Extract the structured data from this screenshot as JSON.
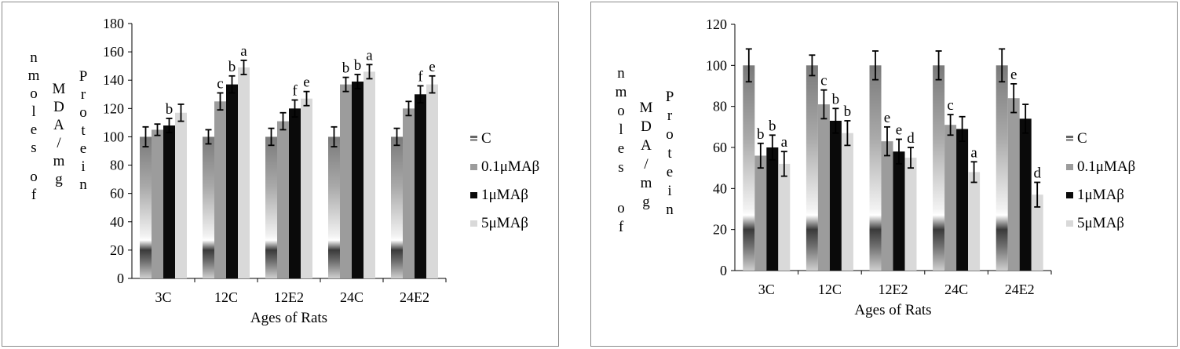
{
  "chart_data": [
    {
      "type": "bar",
      "xlabel": "Ages of Rats",
      "ylabel_columns": [
        "nmoles of",
        "MDA/mg",
        "Protein"
      ],
      "ylim": [
        0,
        180
      ],
      "yticks": [
        0,
        20,
        40,
        60,
        80,
        100,
        120,
        140,
        160,
        180
      ],
      "categories": [
        "3C",
        "12C",
        "12E2",
        "24C",
        "24E2"
      ],
      "legend_position": "right",
      "series": [
        {
          "name": "C",
          "color": "#8c8c8c",
          "gradient": true,
          "values": [
            100,
            100,
            100,
            100,
            100
          ],
          "errors": [
            7,
            5,
            6,
            7,
            6
          ],
          "labels": [
            "",
            "",
            "",
            "",
            ""
          ]
        },
        {
          "name": "0.1μMAβ",
          "color": "#9c9c9c",
          "values": [
            105,
            125,
            111,
            137,
            120
          ],
          "errors": [
            4,
            6,
            6,
            5,
            5
          ],
          "labels": [
            "",
            "c",
            "",
            "b",
            ""
          ]
        },
        {
          "name": "1μMAβ",
          "color": "#0a0a0a",
          "values": [
            108,
            137,
            120,
            139,
            130
          ],
          "errors": [
            5,
            6,
            6,
            5,
            6
          ],
          "labels": [
            "b",
            "b",
            "f",
            "b",
            "f"
          ]
        },
        {
          "name": "5μMAβ",
          "color": "#d9d9d9",
          "values": [
            117,
            149,
            127,
            146,
            137
          ],
          "errors": [
            6,
            5,
            5,
            5,
            6
          ],
          "labels": [
            "",
            "a",
            "e",
            "a",
            "e"
          ]
        }
      ]
    },
    {
      "type": "bar",
      "xlabel": "Ages of Rats",
      "ylabel_columns": [
        "nmoles of",
        "MDA/mg",
        "Protein"
      ],
      "ylim": [
        0,
        120
      ],
      "yticks": [
        0,
        20,
        40,
        60,
        80,
        100,
        120
      ],
      "categories": [
        "3C",
        "12C",
        "12E2",
        "24C",
        "24E2"
      ],
      "legend_position": "right",
      "series": [
        {
          "name": "C",
          "color": "#8c8c8c",
          "gradient": true,
          "values": [
            100,
            100,
            100,
            100,
            100
          ],
          "errors": [
            8,
            5,
            7,
            7,
            8
          ],
          "labels": [
            "",
            "",
            "",
            "",
            ""
          ]
        },
        {
          "name": "0.1μMAβ",
          "color": "#9c9c9c",
          "values": [
            56,
            81,
            63,
            71,
            84
          ],
          "errors": [
            6,
            7,
            7,
            5,
            7
          ],
          "labels": [
            "b",
            "c",
            "e",
            "c",
            "e"
          ]
        },
        {
          "name": "1μMAβ",
          "color": "#0a0a0a",
          "values": [
            60,
            73,
            58,
            69,
            74
          ],
          "errors": [
            6,
            6,
            6,
            6,
            7
          ],
          "labels": [
            "b",
            "b",
            "e",
            "",
            ""
          ]
        },
        {
          "name": "5μMAβ",
          "color": "#d9d9d9",
          "values": [
            52,
            67,
            55,
            48,
            37
          ],
          "errors": [
            6,
            6,
            5,
            5,
            6
          ],
          "labels": [
            "a",
            "b",
            "d",
            "a",
            "d"
          ]
        }
      ]
    }
  ]
}
